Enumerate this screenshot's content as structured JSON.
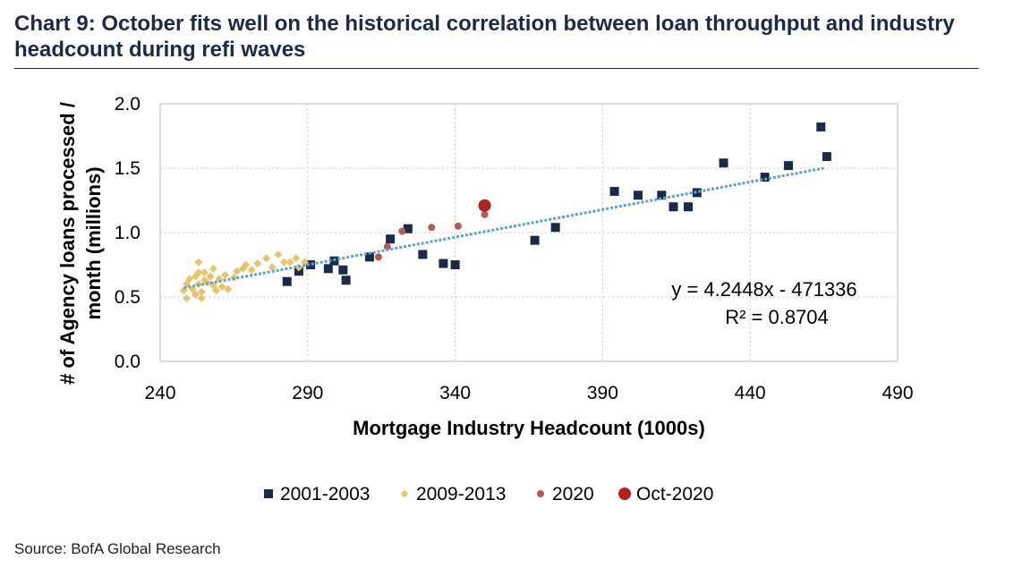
{
  "title": "Chart 9: October fits well on the historical correlation between loan throughput and industry headcount during refi waves",
  "source": "Source: BofA Global Research",
  "chart_data": {
    "type": "scatter",
    "xlabel": "Mortgage Industry Headcount (1000s)",
    "ylabel": "# of Agency loans processed / month (millions)",
    "xlim": [
      240,
      490
    ],
    "ylim": [
      0.0,
      2.0
    ],
    "xticks": [
      240,
      290,
      340,
      390,
      440,
      490
    ],
    "xtick_labels": [
      "240",
      "290",
      "340",
      "390",
      "440",
      "490"
    ],
    "yticks": [
      0.0,
      0.5,
      1.0,
      1.5,
      2.0
    ],
    "ytick_labels": [
      "0.0",
      "0.5",
      "1.0",
      "1.5",
      "2.0"
    ],
    "grid": "dotted",
    "legend_position": "bottom",
    "trendline": {
      "equation": "y = 4.2448x - 471336",
      "r2": "R² = 0.8704",
      "x_range": [
        248,
        465
      ],
      "y_range": [
        0.57,
        1.5
      ],
      "color": "#5ba3c9"
    },
    "series": [
      {
        "name": "2001-2003",
        "marker": "square",
        "color": "#1b2a4a",
        "points": [
          [
            283,
            0.62
          ],
          [
            287,
            0.7
          ],
          [
            291,
            0.75
          ],
          [
            297,
            0.72
          ],
          [
            299,
            0.78
          ],
          [
            302,
            0.71
          ],
          [
            303,
            0.63
          ],
          [
            311,
            0.81
          ],
          [
            318,
            0.95
          ],
          [
            324,
            1.03
          ],
          [
            329,
            0.83
          ],
          [
            336,
            0.76
          ],
          [
            340,
            0.75
          ],
          [
            367,
            0.94
          ],
          [
            374,
            1.04
          ],
          [
            394,
            1.32
          ],
          [
            402,
            1.29
          ],
          [
            410,
            1.29
          ],
          [
            414,
            1.2
          ],
          [
            419,
            1.2
          ],
          [
            422,
            1.31
          ],
          [
            431,
            1.54
          ],
          [
            445,
            1.43
          ],
          [
            453,
            1.52
          ],
          [
            464,
            1.82
          ],
          [
            466,
            1.59
          ]
        ]
      },
      {
        "name": "2009-2013",
        "marker": "diamond",
        "color": "#e8c46c",
        "points": [
          [
            248,
            0.55
          ],
          [
            249,
            0.49
          ],
          [
            249,
            0.6
          ],
          [
            250,
            0.64
          ],
          [
            251,
            0.56
          ],
          [
            252,
            0.66
          ],
          [
            252,
            0.52
          ],
          [
            253,
            0.69
          ],
          [
            253,
            0.6
          ],
          [
            253,
            0.77
          ],
          [
            254,
            0.54
          ],
          [
            254,
            0.49
          ],
          [
            255,
            0.63
          ],
          [
            255,
            0.69
          ],
          [
            256,
            0.61
          ],
          [
            257,
            0.66
          ],
          [
            258,
            0.72
          ],
          [
            258,
            0.59
          ],
          [
            259,
            0.55
          ],
          [
            260,
            0.64
          ],
          [
            261,
            0.58
          ],
          [
            262,
            0.67
          ],
          [
            263,
            0.56
          ],
          [
            265,
            0.65
          ],
          [
            266,
            0.7
          ],
          [
            268,
            0.72
          ],
          [
            269,
            0.75
          ],
          [
            271,
            0.71
          ],
          [
            273,
            0.76
          ],
          [
            276,
            0.8
          ],
          [
            278,
            0.73
          ],
          [
            280,
            0.83
          ],
          [
            282,
            0.77
          ],
          [
            284,
            0.77
          ],
          [
            286,
            0.8
          ],
          [
            287,
            0.73
          ],
          [
            289,
            0.77
          ]
        ]
      },
      {
        "name": "2020",
        "marker": "circle",
        "color": "#b55a55",
        "points": [
          [
            314,
            0.81
          ],
          [
            317,
            0.89
          ],
          [
            322,
            1.01
          ],
          [
            332,
            1.04
          ],
          [
            341,
            1.05
          ],
          [
            350,
            1.14
          ]
        ]
      },
      {
        "name": "Oct-2020",
        "marker": "circle-large",
        "color": "#b52020",
        "points": [
          [
            350,
            1.21
          ]
        ]
      }
    ]
  }
}
